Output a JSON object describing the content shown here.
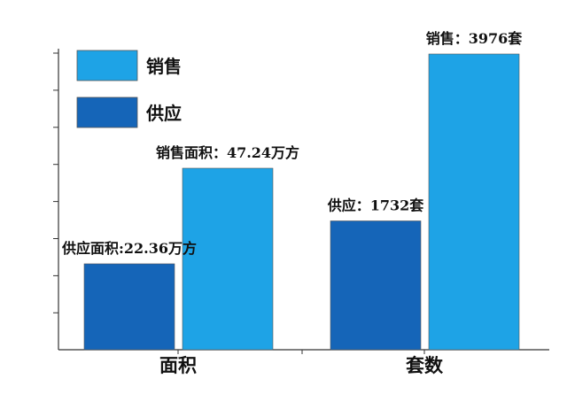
{
  "chart_data": {
    "type": "bar",
    "categories": [
      "面积",
      "套数"
    ],
    "series": [
      {
        "name": "供应",
        "color": "#1565b8",
        "values": [
          22.36,
          1732
        ],
        "labels": [
          "供应面积:22.36万方",
          "供应：1732套"
        ]
      },
      {
        "name": "销售",
        "color": "#1ea3e6",
        "values": [
          47.24,
          3976
        ],
        "labels": [
          "销售面积：47.24万方",
          "销售：3976套"
        ]
      }
    ],
    "legend": {
      "placement": "top-left",
      "order": [
        "销售",
        "供应"
      ]
    },
    "grid": false,
    "note": "each category uses its own scale"
  }
}
